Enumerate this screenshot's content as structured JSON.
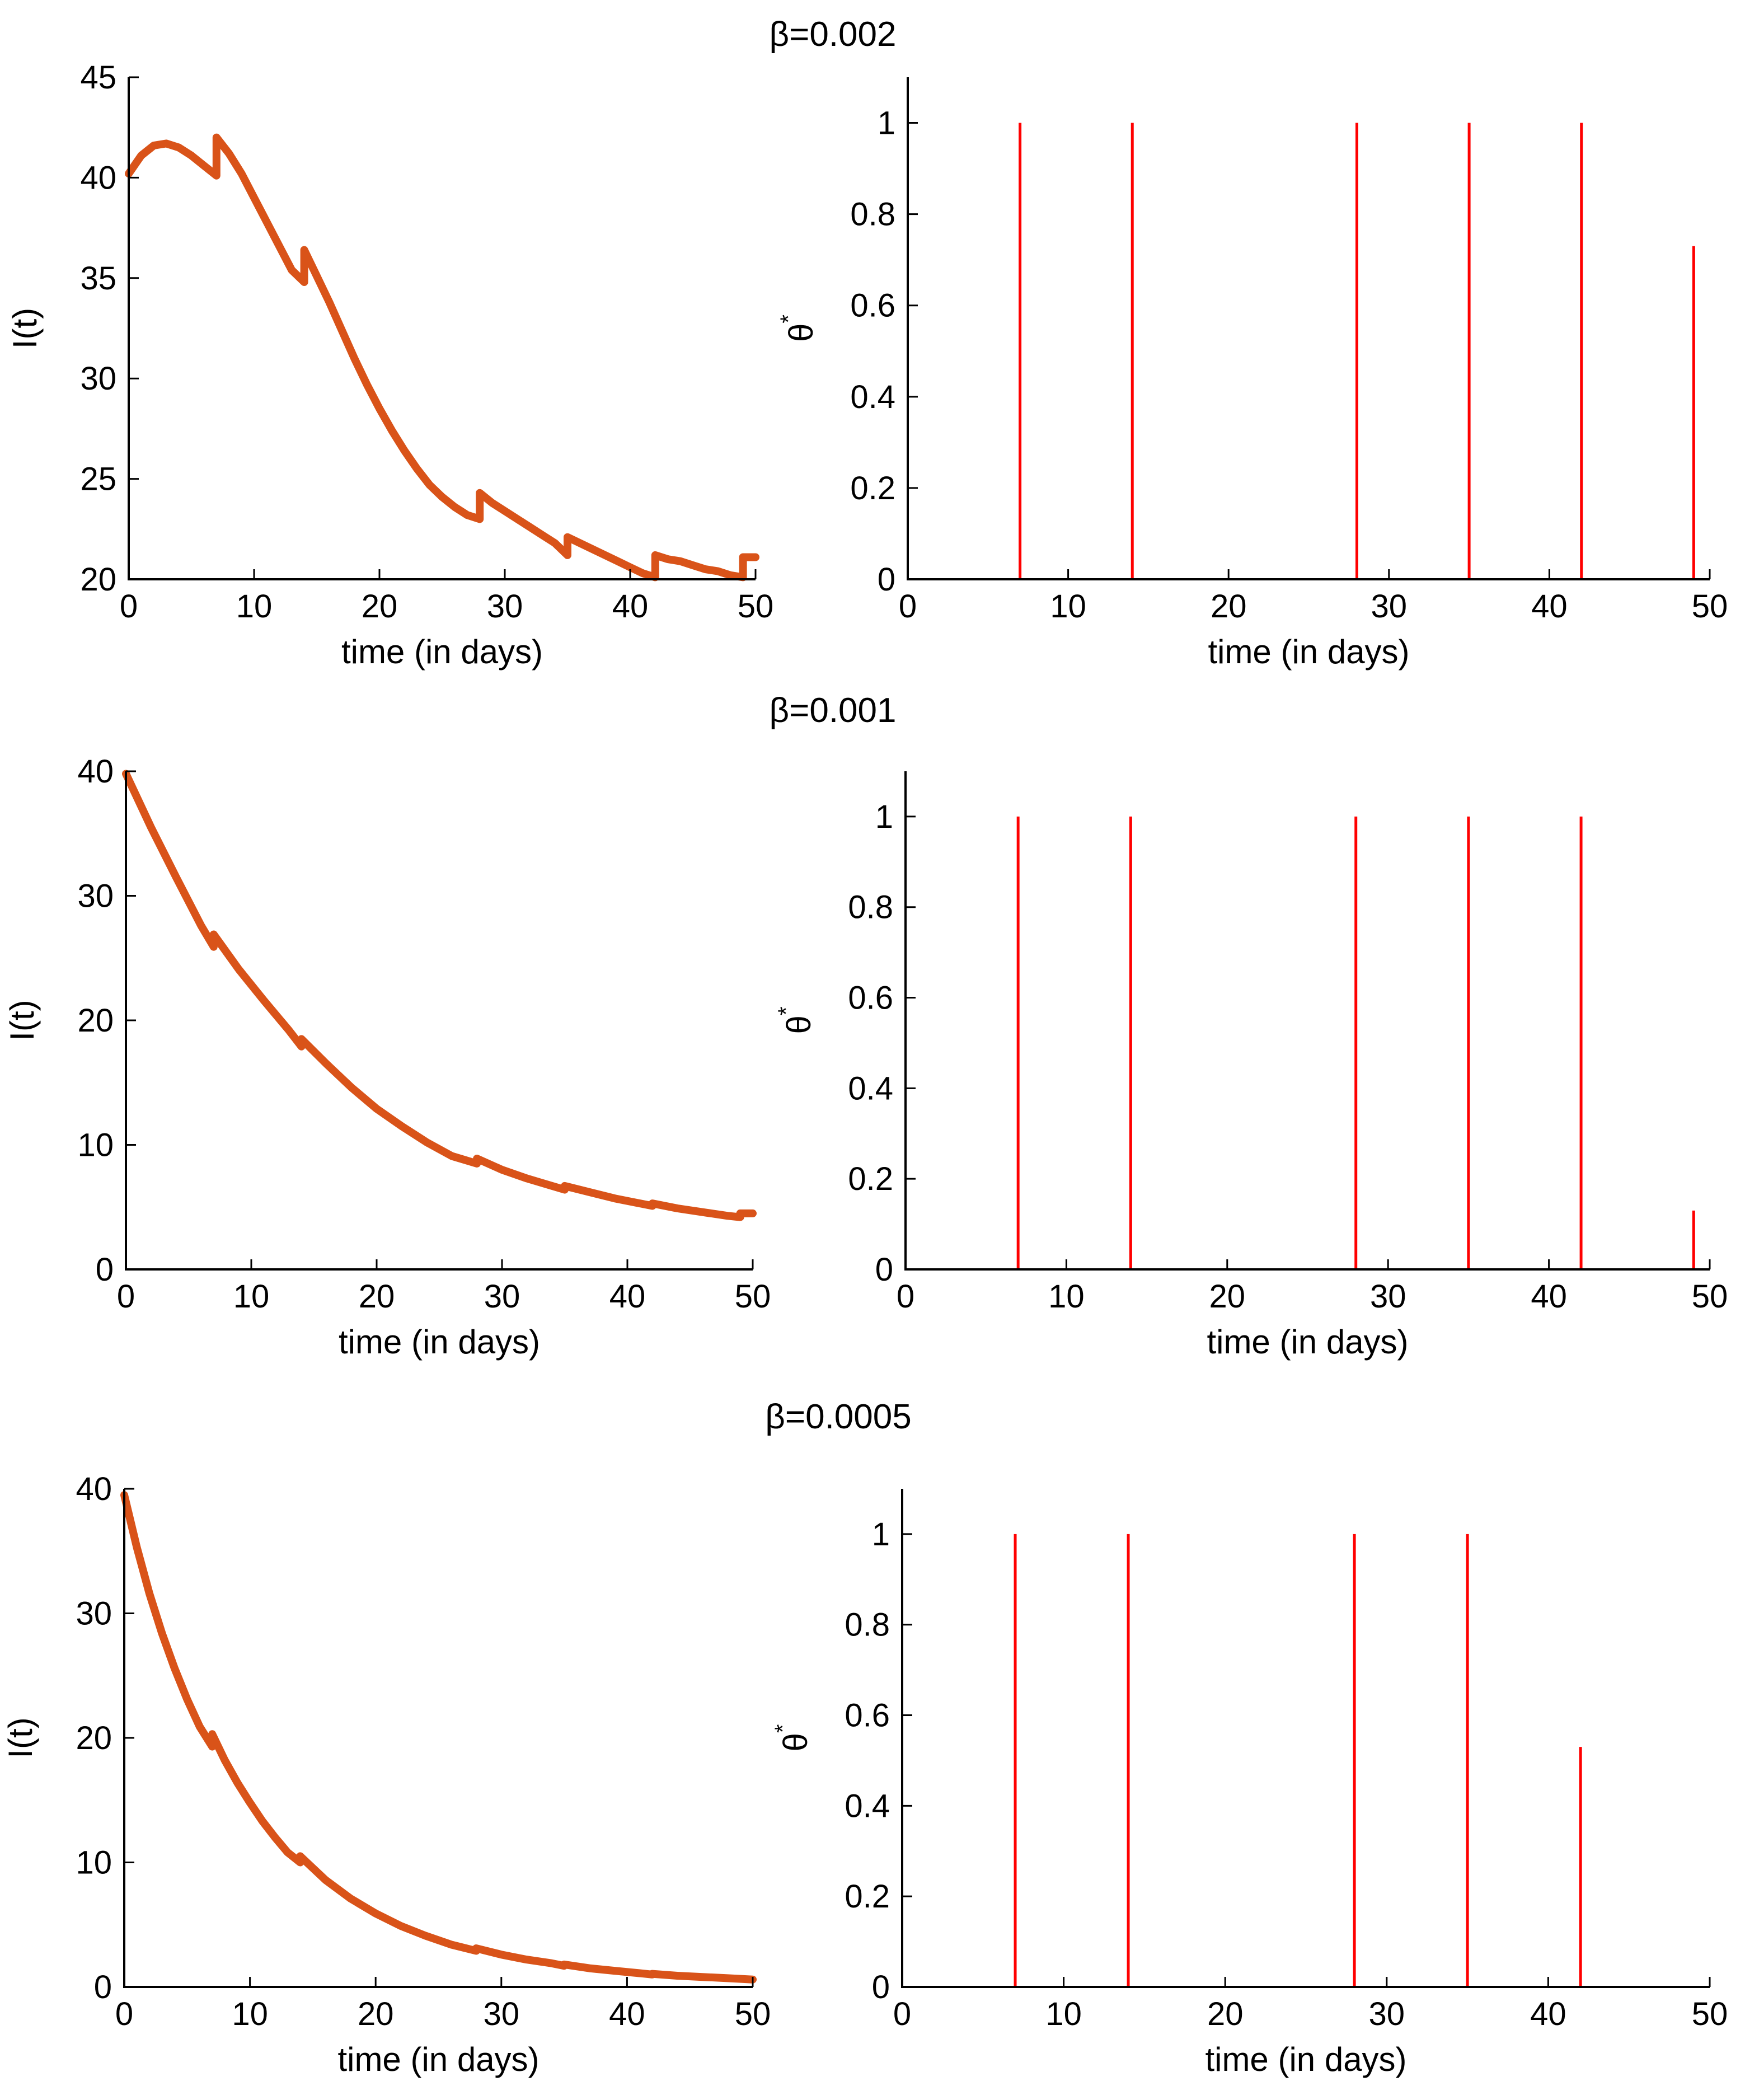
{
  "figure": {
    "rows": [
      {
        "title": "β=0.002",
        "left": {
          "type": "line",
          "xlabel": "time (in days)",
          "ylabel": "I(t)",
          "xlim": [
            0,
            50
          ],
          "ylim": [
            20,
            45
          ],
          "xticks": [
            0,
            10,
            20,
            30,
            40,
            50
          ],
          "yticks": [
            20,
            25,
            30,
            35,
            40,
            45
          ],
          "color": "#d95319",
          "series": [
            {
              "name": "I(t)",
              "x": [
                0,
                1,
                2,
                3,
                4,
                5,
                6,
                7,
                7,
                8,
                9,
                10,
                11,
                12,
                13,
                14,
                14,
                15,
                16,
                17,
                18,
                19,
                20,
                21,
                22,
                23,
                24,
                25,
                26,
                27,
                28,
                28,
                29,
                30,
                31,
                32,
                33,
                34,
                35,
                35,
                36,
                37,
                38,
                39,
                40,
                41,
                42,
                42,
                43,
                44,
                45,
                46,
                47,
                48,
                49,
                49,
                50
              ],
              "y": [
                40.2,
                41.1,
                41.6,
                41.7,
                41.5,
                41.1,
                40.6,
                40.1,
                42.0,
                41.2,
                40.2,
                39.0,
                37.8,
                36.6,
                35.4,
                34.8,
                36.4,
                35.1,
                33.8,
                32.4,
                31.0,
                29.7,
                28.5,
                27.4,
                26.4,
                25.5,
                24.7,
                24.1,
                23.6,
                23.2,
                23.0,
                24.3,
                23.8,
                23.4,
                23.0,
                22.6,
                22.2,
                21.8,
                21.2,
                22.1,
                21.8,
                21.5,
                21.2,
                20.9,
                20.6,
                20.3,
                20.1,
                21.2,
                21.0,
                20.9,
                20.7,
                20.5,
                20.4,
                20.2,
                20.1,
                21.1,
                21.1
              ]
            }
          ]
        },
        "right": {
          "type": "line",
          "xlabel": "time (in days)",
          "ylabel": "θ*",
          "ylabel_main": "θ",
          "ylabel_sup": "*",
          "xlim": [
            0,
            50
          ],
          "ylim": [
            0,
            1.1
          ],
          "xticks": [
            0,
            10,
            20,
            30,
            40,
            50
          ],
          "yticks": [
            0,
            0.2,
            0.4,
            0.6,
            0.8,
            1
          ],
          "color": "#ff0000",
          "spikes": {
            "times": [
              7,
              14,
              28,
              35,
              42,
              49
            ],
            "peaks": [
              1,
              1,
              1,
              1,
              1,
              0.73
            ]
          }
        }
      },
      {
        "title": "β=0.001",
        "left": {
          "type": "line",
          "xlabel": "time (in days)",
          "ylabel": "I(t)",
          "xlim": [
            0,
            50
          ],
          "ylim": [
            0,
            40
          ],
          "xticks": [
            0,
            10,
            20,
            30,
            40,
            50
          ],
          "yticks": [
            0,
            10,
            20,
            30,
            40
          ],
          "color": "#d95319",
          "series": [
            {
              "name": "I(t)",
              "x": [
                0,
                2,
                4,
                6,
                7,
                7,
                9,
                11,
                13,
                14,
                14,
                16,
                18,
                20,
                22,
                24,
                26,
                28,
                28,
                30,
                32,
                34,
                35,
                35,
                37,
                39,
                41,
                42,
                42,
                44,
                46,
                48,
                49,
                49,
                50
              ],
              "y": [
                39.8,
                35.5,
                31.5,
                27.6,
                25.9,
                26.9,
                24.1,
                21.6,
                19.2,
                17.9,
                18.5,
                16.5,
                14.6,
                12.9,
                11.5,
                10.2,
                9.1,
                8.5,
                8.9,
                8.0,
                7.3,
                6.7,
                6.4,
                6.7,
                6.2,
                5.7,
                5.3,
                5.1,
                5.3,
                4.9,
                4.6,
                4.3,
                4.2,
                4.5,
                4.5
              ]
            }
          ]
        },
        "right": {
          "type": "line",
          "xlabel": "time (in days)",
          "ylabel": "θ*",
          "ylabel_main": "θ",
          "ylabel_sup": "*",
          "xlim": [
            0,
            50
          ],
          "ylim": [
            0,
            1.1
          ],
          "xticks": [
            0,
            10,
            20,
            30,
            40,
            50
          ],
          "yticks": [
            0,
            0.2,
            0.4,
            0.6,
            0.8,
            1
          ],
          "color": "#ff0000",
          "spikes": {
            "times": [
              7,
              14,
              28,
              35,
              42,
              49
            ],
            "peaks": [
              1,
              1,
              1,
              1,
              1,
              0.13
            ]
          }
        }
      },
      {
        "title": "β=0.0005",
        "left": {
          "type": "line",
          "xlabel": "time (in days)",
          "ylabel": "I(t)",
          "xlim": [
            0,
            50
          ],
          "ylim": [
            0,
            40
          ],
          "xticks": [
            0,
            10,
            20,
            30,
            40,
            50
          ],
          "yticks": [
            0,
            10,
            20,
            30,
            40
          ],
          "color": "#d95319",
          "series": [
            {
              "name": "I(t)",
              "x": [
                0,
                1,
                2,
                3,
                4,
                5,
                6,
                7,
                7,
                8,
                9,
                10,
                11,
                12,
                13,
                14,
                14,
                16,
                18,
                20,
                22,
                24,
                26,
                28,
                28,
                30,
                32,
                34,
                35,
                35,
                37,
                39,
                41,
                42,
                42,
                44,
                46,
                48,
                50
              ],
              "y": [
                39.5,
                35.3,
                31.6,
                28.4,
                25.6,
                23.1,
                20.9,
                19.3,
                20.3,
                18.2,
                16.4,
                14.8,
                13.3,
                12.0,
                10.8,
                10.0,
                10.5,
                8.6,
                7.1,
                5.9,
                4.9,
                4.1,
                3.4,
                2.9,
                3.1,
                2.6,
                2.2,
                1.9,
                1.7,
                1.8,
                1.5,
                1.3,
                1.1,
                1.0,
                1.05,
                0.9,
                0.8,
                0.7,
                0.6
              ]
            }
          ]
        },
        "right": {
          "type": "line",
          "xlabel": "time (in days)",
          "ylabel": "θ*",
          "ylabel_main": "θ",
          "ylabel_sup": "*",
          "xlim": [
            0,
            50
          ],
          "ylim": [
            0,
            1.1
          ],
          "xticks": [
            0,
            10,
            20,
            30,
            40,
            50
          ],
          "yticks": [
            0,
            0.2,
            0.4,
            0.6,
            0.8,
            1
          ],
          "color": "#ff0000",
          "spikes": {
            "times": [
              7,
              14,
              28,
              35,
              42
            ],
            "peaks": [
              1,
              1,
              1,
              1,
              0.53
            ]
          }
        }
      }
    ]
  }
}
